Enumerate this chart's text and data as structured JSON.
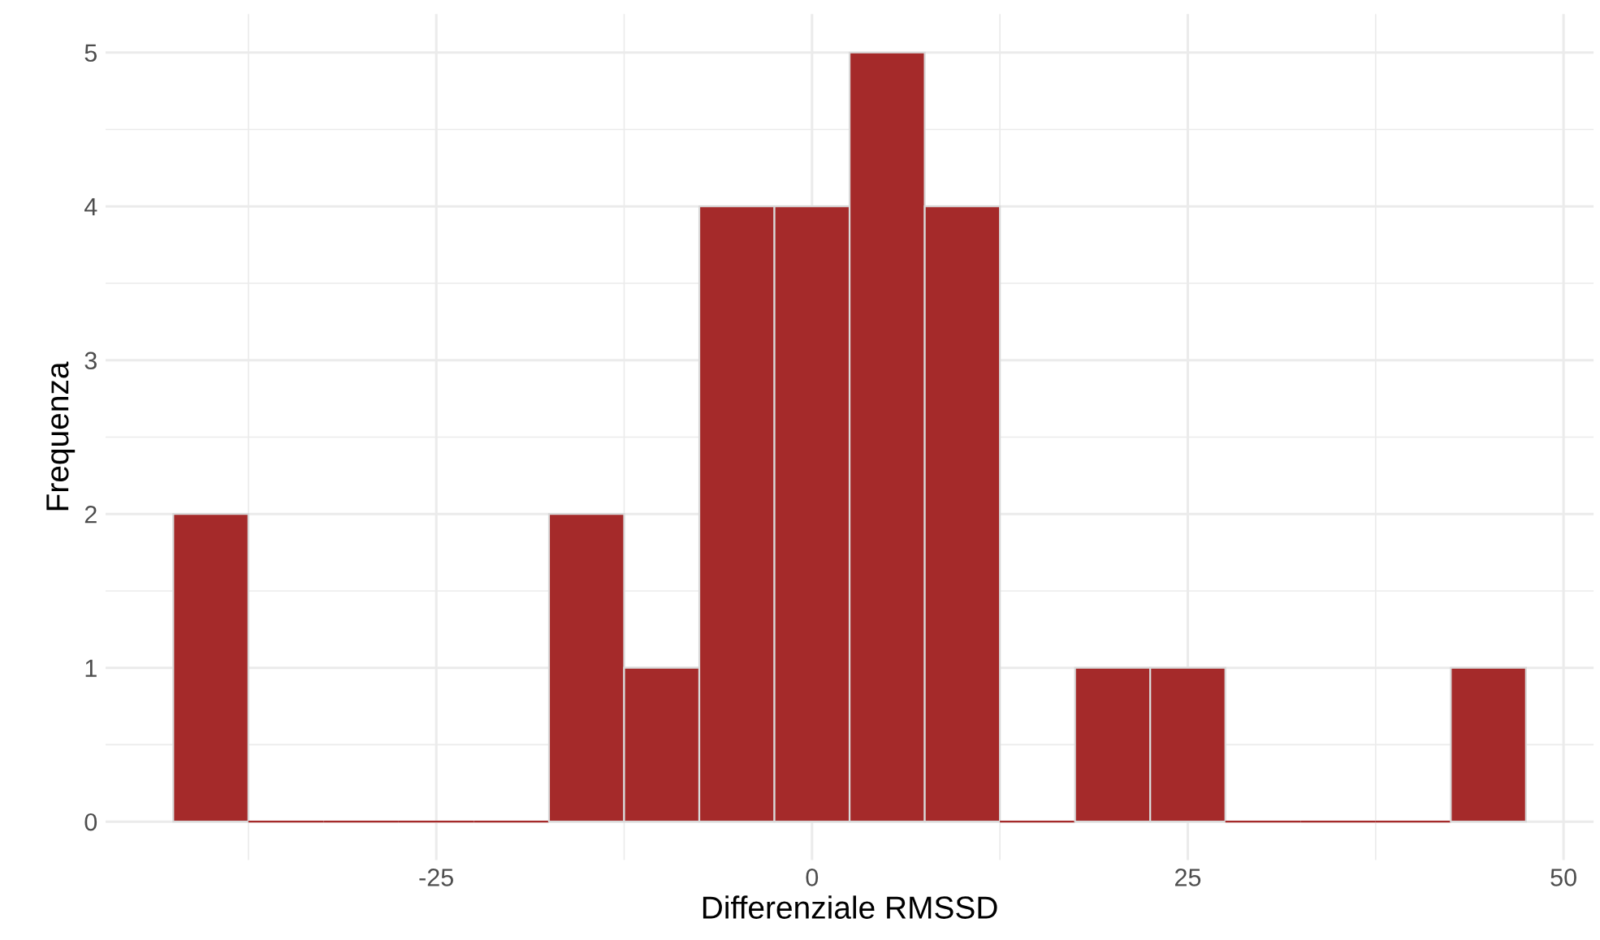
{
  "chart_data": {
    "type": "histogram",
    "xlabel": "Differenziale RMSSD",
    "ylabel": "Frequenza",
    "bins": [
      -42.5,
      -37.5,
      -32.5,
      -27.5,
      -22.5,
      -17.5,
      -12.5,
      -7.5,
      -2.5,
      2.5,
      7.5,
      12.5,
      17.5,
      22.5,
      27.5,
      32.5,
      37.5,
      42.5,
      47.5
    ],
    "values": [
      2,
      0,
      0,
      0,
      0,
      2,
      1,
      4,
      4,
      5,
      4,
      0,
      1,
      1,
      0,
      0,
      0,
      1
    ],
    "color": "#a52a2a",
    "xlim": [
      -47,
      52
    ],
    "ylim": [
      -0.25,
      5.25
    ],
    "xticks": [
      {
        "value": -37.5,
        "label": null
      },
      -25,
      {
        "value": -12.5,
        "label": null
      },
      0,
      {
        "value": 12.5,
        "label": null
      },
      25,
      {
        "value": 37.5,
        "label": null
      },
      50
    ],
    "yticks": [
      0,
      {
        "value": 0.5,
        "label": null
      },
      1,
      {
        "value": 1.5,
        "label": null
      },
      2,
      {
        "value": 2.5,
        "label": null
      },
      3,
      {
        "value": 3.5,
        "label": null
      },
      4,
      {
        "value": 4.5,
        "label": null
      },
      5
    ],
    "grid": true
  }
}
